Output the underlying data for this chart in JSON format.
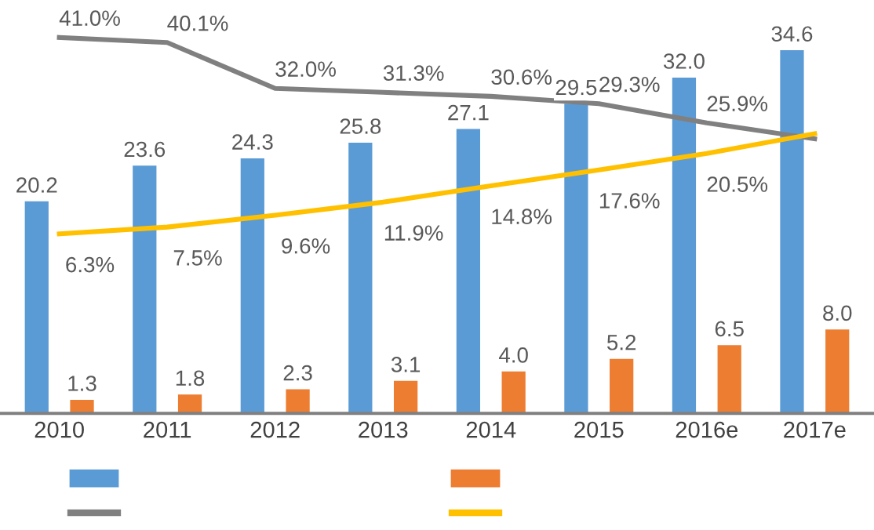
{
  "chart_data": {
    "type": "bar",
    "categories": [
      "2010",
      "2011",
      "2012",
      "2013",
      "2014",
      "2015",
      "2016e",
      "2017e"
    ],
    "series": [
      {
        "color": "#5b9bd5",
        "values": [
          20.2,
          23.6,
          24.3,
          25.8,
          27.1,
          29.5,
          32.0,
          34.6
        ],
        "value_labels": [
          "20.2",
          "23.6",
          "24.3",
          "25.8",
          "27.1",
          "29.5",
          "32.0",
          "34.6"
        ]
      },
      {
        "color": "#ed7d31",
        "values": [
          1.3,
          1.8,
          2.3,
          3.1,
          4.0,
          5.2,
          6.5,
          8.0
        ],
        "value_labels": [
          "1.3",
          "1.8",
          "2.3",
          "3.1",
          "4.0",
          "5.2",
          "6.5",
          "8.0"
        ]
      },
      {
        "type": "line",
        "axis": "y2",
        "color": "#808080",
        "values": [
          41.0,
          40.1,
          32.0,
          31.3,
          30.6,
          29.3,
          25.9,
          23.1
        ],
        "value_labels": [
          "41.0%",
          "40.1%",
          "32.0%",
          "31.3%",
          "30.6%",
          "29.3%",
          "25.9%",
          null
        ]
      },
      {
        "type": "line",
        "axis": "y2",
        "color": "#ffc000",
        "values": [
          6.3,
          7.5,
          9.6,
          11.9,
          14.8,
          17.6,
          20.5,
          24.0
        ],
        "value_labels": [
          "6.3%",
          "7.5%",
          "9.6%",
          "11.9%",
          "14.8%",
          "17.6%",
          "20.5%",
          null
        ]
      }
    ],
    "marker": "none",
    "line_style": "solid",
    "grid": false
  }
}
